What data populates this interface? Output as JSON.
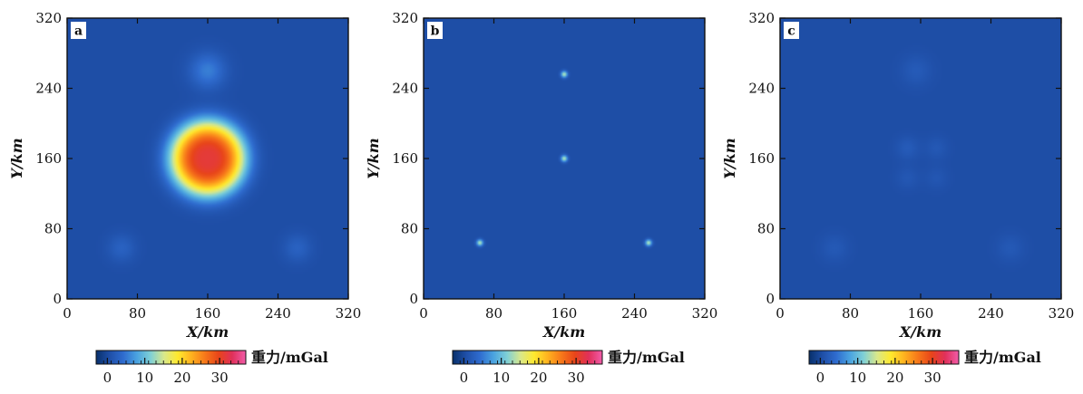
{
  "chart_data": [
    {
      "type": "heatmap",
      "panel_label": "a",
      "xlabel": "X/km",
      "ylabel": "Y/km",
      "xlim": [
        0,
        320
      ],
      "ylim": [
        0,
        320
      ],
      "xticks": [
        0,
        80,
        160,
        240,
        320
      ],
      "yticks": [
        0,
        80,
        160,
        240,
        320
      ],
      "background_value": 0.5,
      "sources": [
        {
          "x": 160,
          "y": 160,
          "peak": 31,
          "sigma_km": 30,
          "shape": "plateau"
        },
        {
          "x": 160,
          "y": 260,
          "peak": 5,
          "sigma_km": 14
        },
        {
          "x": 62,
          "y": 58,
          "peak": 2.5,
          "sigma_km": 11
        },
        {
          "x": 262,
          "y": 58,
          "peak": 2.5,
          "sigma_km": 11
        }
      ],
      "colorbar": {
        "label": "重力/mGal",
        "ticks": [
          0,
          10,
          20,
          30
        ],
        "range": [
          -3,
          37
        ]
      }
    },
    {
      "type": "heatmap",
      "panel_label": "b",
      "xlabel": "X/km",
      "ylabel": "Y/km",
      "xlim": [
        0,
        320
      ],
      "ylim": [
        0,
        320
      ],
      "xticks": [
        0,
        80,
        160,
        240,
        320
      ],
      "yticks": [
        0,
        80,
        160,
        240,
        320
      ],
      "background_value": 0.5,
      "sources": [
        {
          "x": 160,
          "y": 256,
          "peak": 14,
          "sigma_km": 2.5
        },
        {
          "x": 160,
          "y": 160,
          "peak": 14,
          "sigma_km": 2.5
        },
        {
          "x": 64,
          "y": 64,
          "peak": 14,
          "sigma_km": 2.5
        },
        {
          "x": 256,
          "y": 64,
          "peak": 14,
          "sigma_km": 2.5
        }
      ],
      "colorbar": {
        "label": "重力/mGal",
        "ticks": [
          0,
          10,
          20,
          30
        ],
        "range": [
          -3,
          37
        ]
      }
    },
    {
      "type": "heatmap",
      "panel_label": "c",
      "xlabel": "X/km",
      "ylabel": "Y/km",
      "xlim": [
        0,
        320
      ],
      "ylim": [
        0,
        320
      ],
      "xticks": [
        0,
        80,
        160,
        240,
        320
      ],
      "yticks": [
        0,
        80,
        160,
        240,
        320
      ],
      "background_value": 0.5,
      "sources": [
        {
          "x": 155,
          "y": 260,
          "peak": 1.6,
          "sigma_km": 12
        },
        {
          "x": 145,
          "y": 172,
          "peak": 1.7,
          "sigma_km": 9
        },
        {
          "x": 178,
          "y": 172,
          "peak": 1.3,
          "sigma_km": 9
        },
        {
          "x": 145,
          "y": 138,
          "peak": 1.2,
          "sigma_km": 9
        },
        {
          "x": 178,
          "y": 138,
          "peak": 1.1,
          "sigma_km": 9
        },
        {
          "x": 62,
          "y": 58,
          "peak": 1.4,
          "sigma_km": 11
        },
        {
          "x": 262,
          "y": 58,
          "peak": 1.4,
          "sigma_km": 11
        }
      ],
      "colorbar": {
        "label": "重力/mGal",
        "ticks": [
          0,
          10,
          20,
          30
        ],
        "range": [
          -3,
          37
        ]
      }
    }
  ],
  "colormap": [
    "#08306b",
    "#1f4fa8",
    "#2f6ccf",
    "#4aa3e0",
    "#7fd0d6",
    "#d9e88a",
    "#ffe92e",
    "#ffb21f",
    "#f7781a",
    "#e8451a",
    "#e0305a",
    "#f25caa"
  ]
}
